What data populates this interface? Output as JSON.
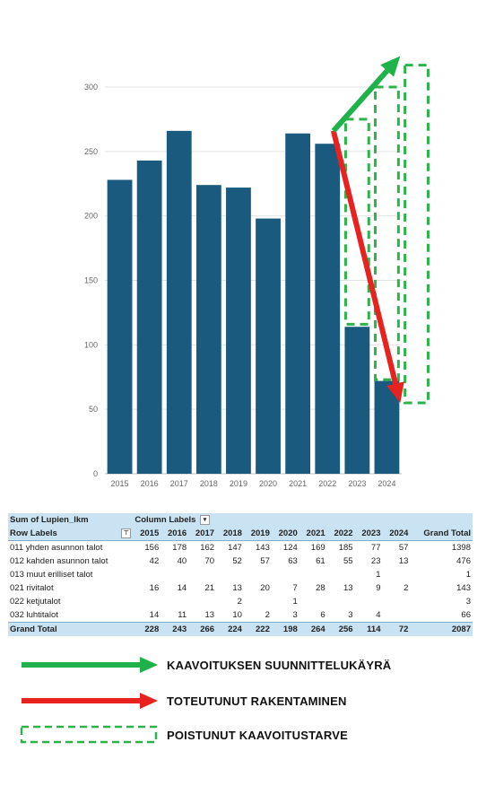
{
  "chart_data": {
    "type": "bar",
    "categories": [
      "2015",
      "2016",
      "2017",
      "2018",
      "2019",
      "2020",
      "2021",
      "2022",
      "2023",
      "2024"
    ],
    "values": [
      228,
      243,
      266,
      224,
      222,
      198,
      264,
      256,
      114,
      72
    ],
    "ylim": [
      0,
      300
    ],
    "yticks": [
      "0",
      "50",
      "100",
      "150",
      "200",
      "250",
      "300"
    ],
    "grid": true,
    "bar_color": "#1a5a7e",
    "overlays": {
      "green_arrow": {
        "from": {
          "x": "2022",
          "y": 266
        },
        "to": {
          "x": "2024",
          "y": 324
        },
        "color": "#1fb24a"
      },
      "red_arrow": {
        "from": {
          "x": "2022",
          "y": 266
        },
        "to": {
          "x": "2024",
          "y": 55
        },
        "color": "#e8231f"
      },
      "dashed_boxes": [
        {
          "category": "2023",
          "top": 275,
          "bottom": 116
        },
        {
          "category": "2024",
          "top": 300,
          "bottom": 73
        },
        {
          "category": "2025",
          "top": 317,
          "bottom": 55
        }
      ],
      "dashed_color": "#2cb34a"
    }
  },
  "pivot": {
    "title": "Sum of Lupien_lkm",
    "column_labels": "Column Labels",
    "row_labels": "Row Labels",
    "years": [
      "2015",
      "2016",
      "2017",
      "2018",
      "2019",
      "2020",
      "2021",
      "2022",
      "2023",
      "2024"
    ],
    "grand_total_header": "Grand Total",
    "rows": [
      {
        "label": "011 yhden asunnon talot",
        "values": [
          "156",
          "178",
          "162",
          "147",
          "143",
          "124",
          "169",
          "185",
          "77",
          "57"
        ],
        "total": "1398"
      },
      {
        "label": "012 kahden asunnon talot",
        "values": [
          "42",
          "40",
          "70",
          "52",
          "57",
          "63",
          "61",
          "55",
          "23",
          "13"
        ],
        "total": "476"
      },
      {
        "label": "013 muut erilliset talot",
        "values": [
          "",
          "",
          "",
          "",
          "",
          "",
          "",
          "",
          "1",
          ""
        ],
        "total": "1"
      },
      {
        "label": "021 rivitalot",
        "values": [
          "16",
          "14",
          "21",
          "13",
          "20",
          "7",
          "28",
          "13",
          "9",
          "2"
        ],
        "total": "143"
      },
      {
        "label": "022 ketjutalot",
        "values": [
          "",
          "",
          "",
          "2",
          "",
          "1",
          "",
          "",
          "",
          ""
        ],
        "total": "3"
      },
      {
        "label": "032 luhtitalot",
        "values": [
          "14",
          "11",
          "13",
          "10",
          "2",
          "3",
          "6",
          "3",
          "4",
          ""
        ],
        "total": "66"
      }
    ],
    "grand_total": {
      "label": "Grand Total",
      "values": [
        "228",
        "243",
        "266",
        "224",
        "222",
        "198",
        "264",
        "256",
        "114",
        "72"
      ],
      "total": "2087"
    }
  },
  "legend": {
    "green_label": "KAAVOITUKSEN SUUNNITTELUKÄYRÄ",
    "red_label": "TOTEUTUNUT RAKENTAMINEN",
    "dashed_label": "POISTUNUT KAAVOITUSTARVE",
    "green_color": "#1fb24a",
    "red_color": "#e8231f",
    "dashed_color": "#2cb34a"
  }
}
